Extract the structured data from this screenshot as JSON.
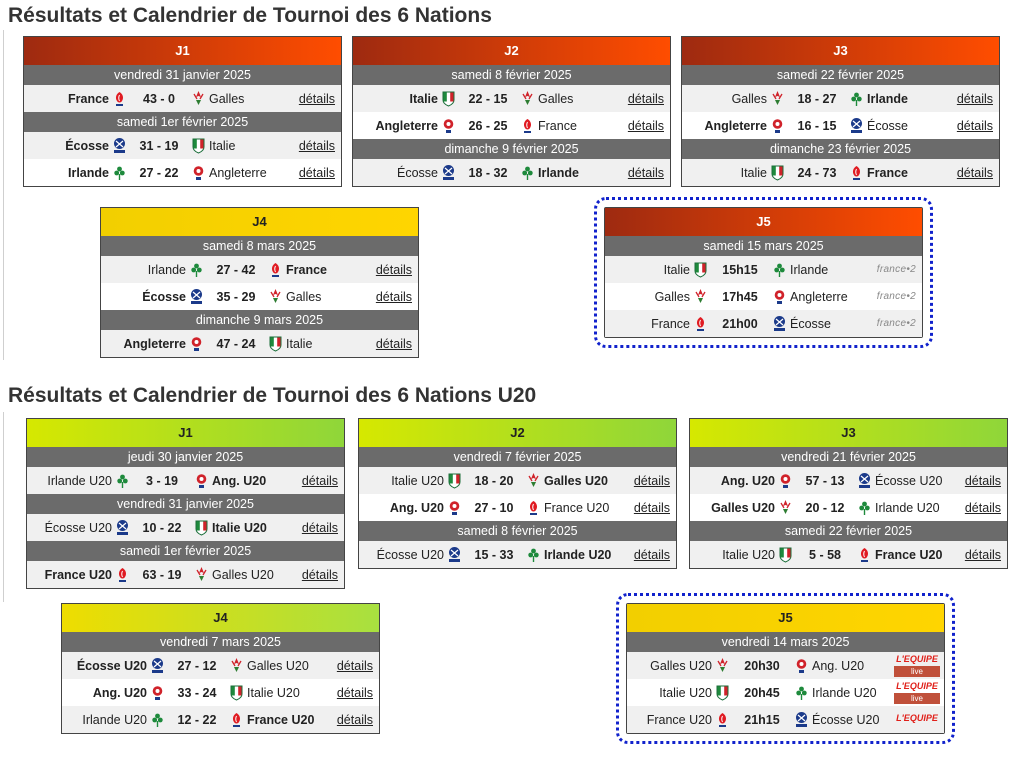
{
  "sections": [
    {
      "title": "Résultats et Calendrier de Tournoi des 6 Nations"
    },
    {
      "title": "Résultats et Calendrier de Tournoi des 6 Nations U20"
    }
  ],
  "details_label": "détails",
  "tv": {
    "france2": "france•2",
    "equipe": "L'EQUIPE",
    "live": "live"
  },
  "colors": {
    "highlight_border": "#1122cc",
    "date_bar": "#6b6b6b",
    "red_header": "#ff4d00",
    "yellow_header": "#ffd500",
    "green_header": "#8fd63a"
  },
  "cards": [
    {
      "name": "J1",
      "blocks": [
        {
          "date": "vendredi 31 janvier 2025",
          "rows": [
            {
              "home": "France",
              "score": "43 - 0",
              "away": "Galles"
            }
          ]
        },
        {
          "date": "samedi 1er février 2025",
          "rows": [
            {
              "home": "Écosse",
              "score": "31 - 19",
              "away": "Italie"
            },
            {
              "home": "Irlande",
              "score": "27 - 22",
              "away": "Angleterre"
            }
          ]
        }
      ]
    },
    {
      "name": "J2",
      "blocks": [
        {
          "date": "samedi 8 février 2025",
          "rows": [
            {
              "home": "Italie",
              "score": "22 - 15",
              "away": "Galles"
            },
            {
              "home": "Angleterre",
              "score": "26 - 25",
              "away": "France"
            }
          ]
        },
        {
          "date": "dimanche 9 février 2025",
          "rows": [
            {
              "home": "Écosse",
              "score": "18 - 32",
              "away": "Irlande"
            }
          ]
        }
      ]
    },
    {
      "name": "J3",
      "blocks": [
        {
          "date": "samedi 22 février 2025",
          "rows": [
            {
              "home": "Galles",
              "score": "18 - 27",
              "away": "Irlande"
            },
            {
              "home": "Angleterre",
              "score": "16 - 15",
              "away": "Écosse"
            }
          ]
        },
        {
          "date": "dimanche 23 février 2025",
          "rows": [
            {
              "home": "Italie",
              "score": "24 - 73",
              "away": "France"
            }
          ]
        }
      ]
    },
    {
      "name": "J4",
      "blocks": [
        {
          "date": "samedi 8 mars 2025",
          "rows": [
            {
              "home": "Irlande",
              "score": "27 - 42",
              "away": "France"
            },
            {
              "home": "Écosse",
              "score": "35 - 29",
              "away": "Galles"
            }
          ]
        },
        {
          "date": "dimanche 9 mars 2025",
          "rows": [
            {
              "home": "Angleterre",
              "score": "47 - 24",
              "away": "Italie"
            }
          ]
        }
      ]
    },
    {
      "name": "J5",
      "blocks": [
        {
          "date": "samedi 15 mars 2025",
          "rows": [
            {
              "home": "Italie",
              "score": "15h15",
              "away": "Irlande"
            },
            {
              "home": "Galles",
              "score": "17h45",
              "away": "Angleterre"
            },
            {
              "home": "France",
              "score": "21h00",
              "away": "Écosse"
            }
          ]
        }
      ]
    },
    {
      "name": "J1",
      "blocks": [
        {
          "date": "jeudi 30 janvier 2025",
          "rows": [
            {
              "home": "Irlande U20",
              "score": "3 - 19",
              "away": "Ang. U20"
            }
          ]
        },
        {
          "date": "vendredi 31 janvier 2025",
          "rows": [
            {
              "home": "Écosse U20",
              "score": "10 - 22",
              "away": "Italie U20"
            }
          ]
        },
        {
          "date": "samedi 1er février 2025",
          "rows": [
            {
              "home": "France U20",
              "score": "63 - 19",
              "away": "Galles U20"
            }
          ]
        }
      ]
    },
    {
      "name": "J2",
      "blocks": [
        {
          "date": "vendredi 7 février 2025",
          "rows": [
            {
              "home": "Italie U20",
              "score": "18 - 20",
              "away": "Galles U20"
            },
            {
              "home": "Ang. U20",
              "score": "27 - 10",
              "away": "France U20"
            }
          ]
        },
        {
          "date": "samedi 8 février 2025",
          "rows": [
            {
              "home": "Écosse U20",
              "score": "15 - 33",
              "away": "Irlande U20"
            }
          ]
        }
      ]
    },
    {
      "name": "J3",
      "blocks": [
        {
          "date": "vendredi 21 février 2025",
          "rows": [
            {
              "home": "Ang. U20",
              "score": "57 - 13",
              "away": "Écosse U20"
            },
            {
              "home": "Galles U20",
              "score": "20 - 12",
              "away": "Irlande U20"
            }
          ]
        },
        {
          "date": "samedi 22 février 2025",
          "rows": [
            {
              "home": "Italie U20",
              "score": "5 - 58",
              "away": "France U20"
            }
          ]
        }
      ]
    },
    {
      "name": "J4",
      "blocks": [
        {
          "date": "vendredi 7 mars 2025",
          "rows": [
            {
              "home": "Écosse U20",
              "score": "27 - 12",
              "away": "Galles U20"
            },
            {
              "home": "Ang. U20",
              "score": "33 - 24",
              "away": "Italie U20"
            },
            {
              "home": "Irlande U20",
              "score": "12 - 22",
              "away": "France U20"
            }
          ]
        }
      ]
    },
    {
      "name": "J5",
      "blocks": [
        {
          "date": "vendredi 14 mars 2025",
          "rows": [
            {
              "home": "Galles U20",
              "score": "20h30",
              "away": "Ang. U20"
            },
            {
              "home": "Italie U20",
              "score": "20h45",
              "away": "Irlande U20"
            },
            {
              "home": "France U20",
              "score": "21h15",
              "away": "Écosse U20"
            }
          ]
        }
      ]
    }
  ]
}
